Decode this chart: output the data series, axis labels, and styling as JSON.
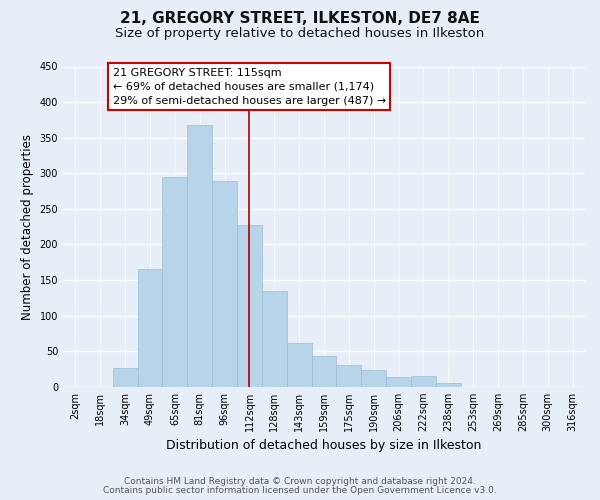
{
  "title": "21, GREGORY STREET, ILKESTON, DE7 8AE",
  "subtitle": "Size of property relative to detached houses in Ilkeston",
  "xlabel": "Distribution of detached houses by size in Ilkeston",
  "ylabel": "Number of detached properties",
  "bar_labels": [
    "2sqm",
    "18sqm",
    "34sqm",
    "49sqm",
    "65sqm",
    "81sqm",
    "96sqm",
    "112sqm",
    "128sqm",
    "143sqm",
    "159sqm",
    "175sqm",
    "190sqm",
    "206sqm",
    "222sqm",
    "238sqm",
    "253sqm",
    "269sqm",
    "285sqm",
    "300sqm",
    "316sqm"
  ],
  "bar_values": [
    0,
    0,
    27,
    165,
    295,
    368,
    289,
    228,
    135,
    61,
    43,
    31,
    23,
    14,
    15,
    6,
    0,
    0,
    0,
    0,
    0
  ],
  "bar_color": "#b8d4e8",
  "bar_edge_color": "#9bbdd8",
  "vline_x_index": 7,
  "vline_color": "#aa0000",
  "annotation_title": "21 GREGORY STREET: 115sqm",
  "annotation_line1": "← 69% of detached houses are smaller (1,174)",
  "annotation_line2": "29% of semi-detached houses are larger (487) →",
  "annotation_box_color": "#ffffff",
  "annotation_box_edge": "#cc0000",
  "ylim": [
    0,
    450
  ],
  "yticks": [
    0,
    50,
    100,
    150,
    200,
    250,
    300,
    350,
    400,
    450
  ],
  "footer_line1": "Contains HM Land Registry data © Crown copyright and database right 2024.",
  "footer_line2": "Contains public sector information licensed under the Open Government Licence v3.0.",
  "bg_color": "#e8eef8",
  "grid_color": "#ffffff",
  "title_fontsize": 11,
  "subtitle_fontsize": 9.5,
  "ylabel_fontsize": 8.5,
  "xlabel_fontsize": 9,
  "tick_fontsize": 7,
  "footer_fontsize": 6.5,
  "annotation_fontsize": 8
}
